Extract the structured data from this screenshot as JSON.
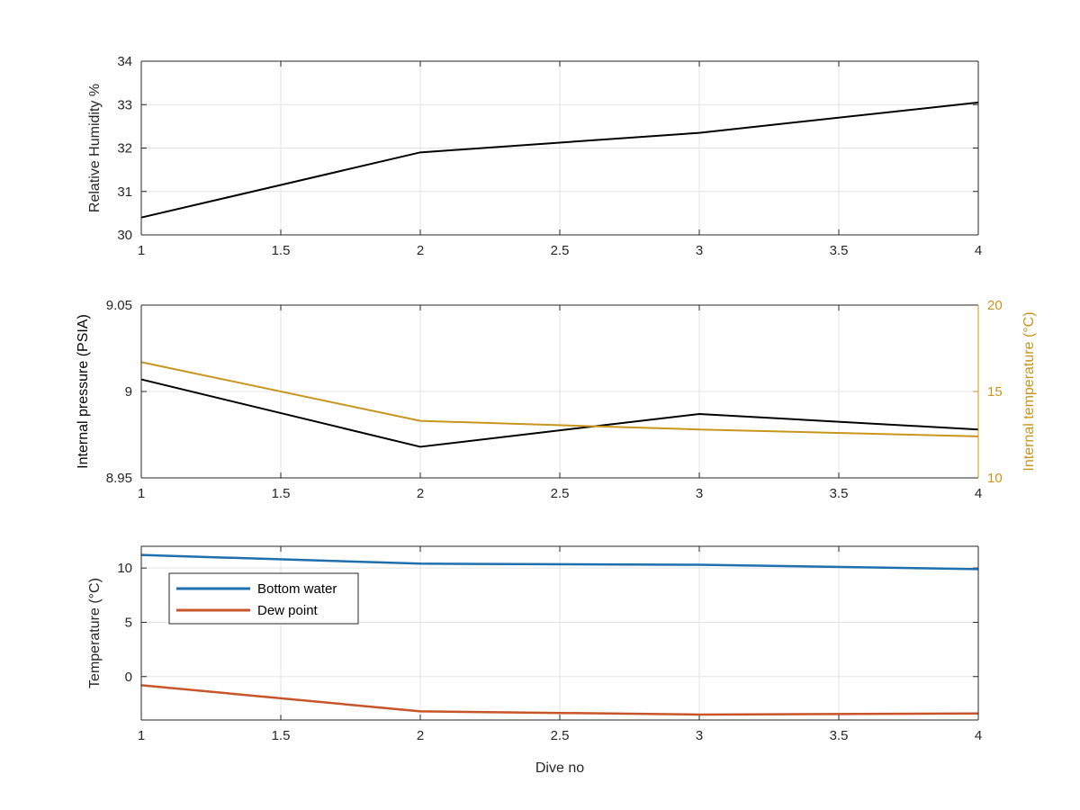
{
  "chart_data": [
    {
      "type": "line",
      "x": [
        1,
        2,
        3,
        4
      ],
      "xlim": [
        1,
        4
      ],
      "ylim": [
        30,
        34
      ],
      "xticks": [
        "1",
        "1.5",
        "2",
        "2.5",
        "3",
        "3.5",
        "4"
      ],
      "yticks": [
        "30",
        "31",
        "32",
        "33",
        "34"
      ],
      "xlabel": "",
      "ylabel": "Relative Humidity %",
      "grid": true,
      "series": [
        {
          "values": [
            30.4,
            31.9,
            32.35,
            33.05
          ],
          "color": "#000000"
        }
      ]
    },
    {
      "type": "line",
      "x": [
        1,
        2,
        3,
        4
      ],
      "xlim": [
        1,
        4
      ],
      "ylim": [
        8.95,
        9.05
      ],
      "xticks": [
        "1",
        "1.5",
        "2",
        "2.5",
        "3",
        "3.5",
        "4"
      ],
      "yticks": [
        "8.95",
        "9",
        "9.05"
      ],
      "xlabel": "",
      "ylabel": "Internal pressure (PSIA)",
      "grid": true,
      "series": [
        {
          "values": [
            9.007,
            8.968,
            8.987,
            8.978
          ],
          "color": "#000000",
          "axis": "left"
        },
        {
          "values": [
            16.7,
            13.3,
            12.8,
            12.4
          ],
          "color": "#C8951E",
          "axis": "right"
        }
      ],
      "y2lim": [
        10,
        20
      ],
      "y2ticks": [
        "10",
        "15",
        "20"
      ],
      "y2label": "Internal temperature (°C)",
      "y2color": "#C8951E"
    },
    {
      "type": "line",
      "x": [
        1,
        2,
        3,
        4
      ],
      "xlim": [
        1,
        4
      ],
      "ylim": [
        -4,
        12
      ],
      "xticks": [
        "1",
        "1.5",
        "2",
        "2.5",
        "3",
        "3.5",
        "4"
      ],
      "yticks": [
        "0",
        "5",
        "10"
      ],
      "xlabel": "Dive no",
      "ylabel": "Temperature (°C)",
      "grid": true,
      "legend": "upper-left",
      "series": [
        {
          "name": "Bottom water",
          "values": [
            11.2,
            10.4,
            10.3,
            9.9
          ],
          "color": "#1F6FAE"
        },
        {
          "name": "Dew point",
          "values": [
            -0.8,
            -3.2,
            -3.5,
            -3.4
          ],
          "color": "#C8552A"
        }
      ]
    }
  ]
}
